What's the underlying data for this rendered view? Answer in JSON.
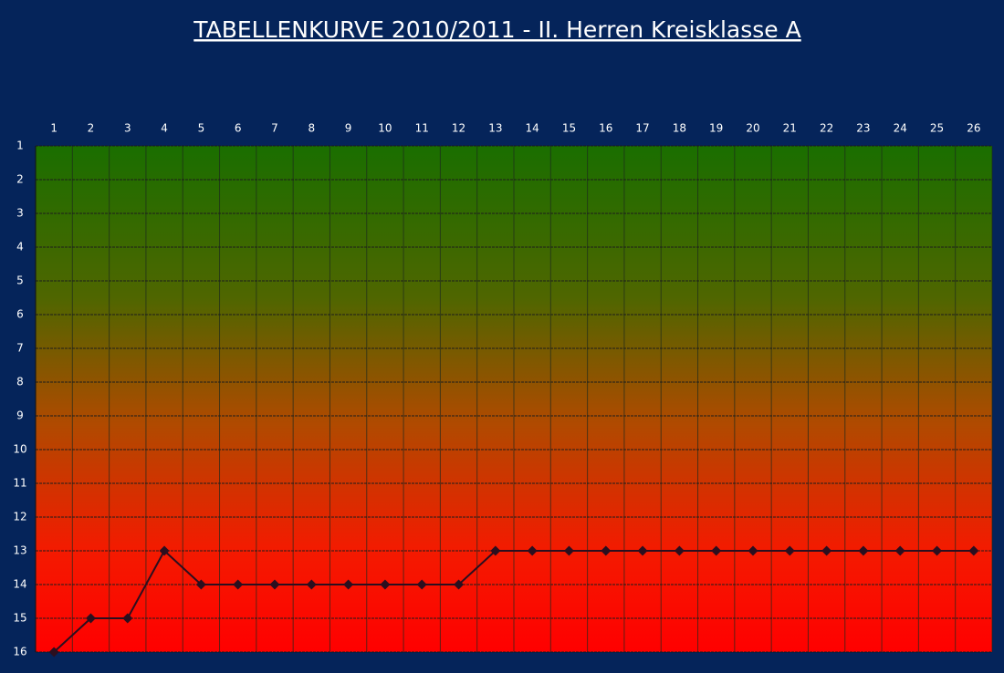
{
  "chart_data": {
    "type": "line",
    "title": "TABELLENKURVE 2010/2011 - II. Herren Kreisklasse A",
    "categories": [
      "1",
      "2",
      "3",
      "4",
      "5",
      "6",
      "7",
      "8",
      "9",
      "10",
      "11",
      "12",
      "13",
      "14",
      "15",
      "16",
      "17",
      "18",
      "19",
      "20",
      "21",
      "22",
      "23",
      "24",
      "25",
      "26"
    ],
    "series": [
      {
        "color": "#2b0f1f",
        "values": [
          16,
          15,
          15,
          13,
          14,
          14,
          14,
          14,
          14,
          14,
          14,
          14,
          13,
          13,
          13,
          13,
          13,
          13,
          13,
          13,
          13,
          13,
          13,
          13,
          13,
          13
        ]
      }
    ],
    "ylim": [
      1,
      16
    ],
    "yticks": [
      1,
      2,
      3,
      4,
      5,
      6,
      7,
      8,
      9,
      10,
      11,
      12,
      13,
      14,
      15,
      16
    ],
    "y_inverted": true,
    "grid": true
  }
}
